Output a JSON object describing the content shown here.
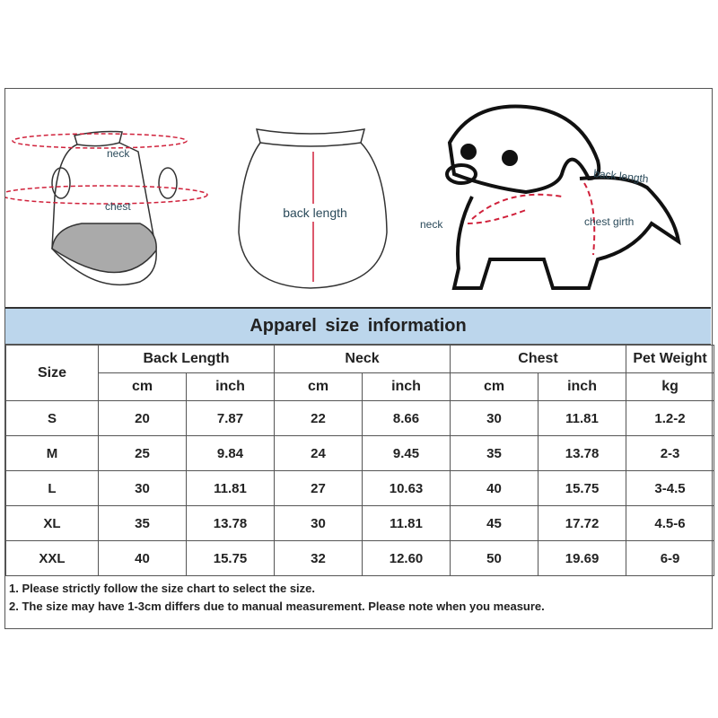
{
  "illustration": {
    "vest_front": {
      "neck_label": "neck",
      "chest_label": "chest"
    },
    "vest_back": {
      "back_length_label": "back length"
    },
    "dog": {
      "back_length_label": "back length",
      "neck_label": "neck",
      "chest_girth_label": "chest girth"
    },
    "accent_color": "#d0213b"
  },
  "table": {
    "title": "Apparel size information",
    "header_color": "#bcd6ec",
    "size_header": "Size",
    "groups": [
      "Back Length",
      "Neck",
      "Chest",
      "Pet Weight"
    ],
    "units": [
      "cm",
      "inch",
      "cm",
      "inch",
      "cm",
      "inch",
      "kg"
    ],
    "rows": [
      [
        "S",
        "20",
        "7.87",
        "22",
        "8.66",
        "30",
        "11.81",
        "1.2-2"
      ],
      [
        "M",
        "25",
        "9.84",
        "24",
        "9.45",
        "35",
        "13.78",
        "2-3"
      ],
      [
        "L",
        "30",
        "11.81",
        "27",
        "10.63",
        "40",
        "15.75",
        "3-4.5"
      ],
      [
        "XL",
        "35",
        "13.78",
        "30",
        "11.81",
        "45",
        "17.72",
        "4.5-6"
      ],
      [
        "XXL",
        "40",
        "15.75",
        "32",
        "12.60",
        "50",
        "19.69",
        "6-9"
      ]
    ]
  },
  "notes": [
    "1. Please strictly follow the size chart  to select the size.",
    "2. The size may have 1-3cm differs due to manual measurement. Please note when you measure."
  ]
}
